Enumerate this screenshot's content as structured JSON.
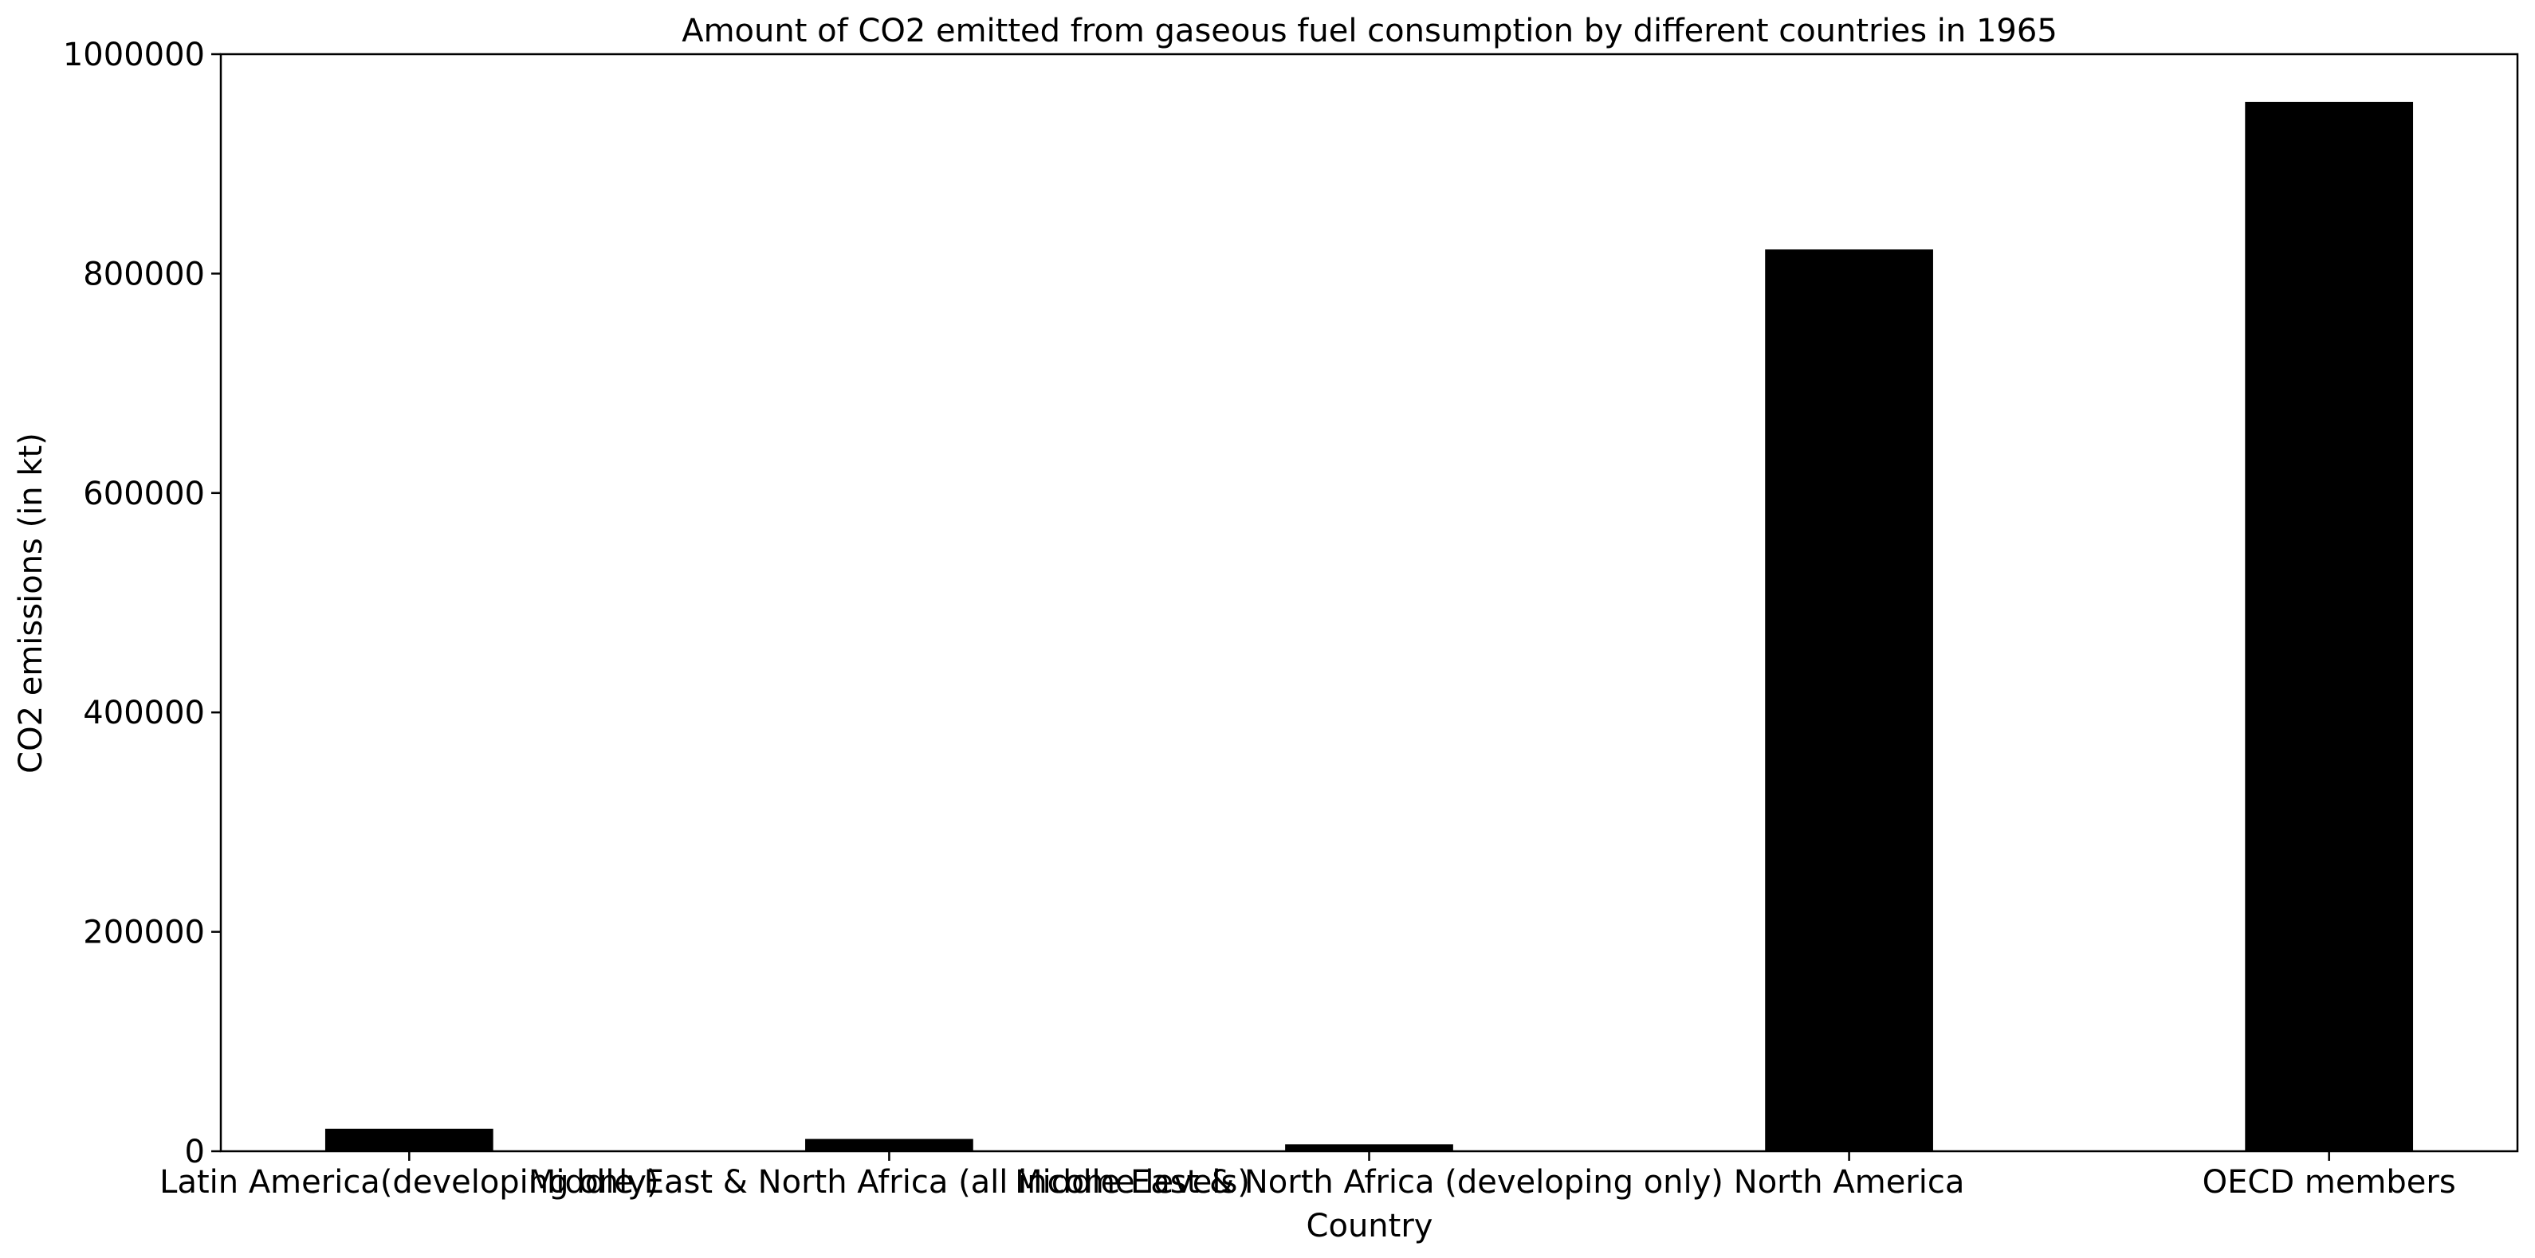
{
  "chart_data": {
    "type": "bar",
    "title": "Amount of CO2 emitted from gaseous fuel consumption by different countries in 1965",
    "xlabel": "Country",
    "ylabel": "CO2 emissions (in kt)",
    "categories": [
      "Latin America(developing only)",
      "Middle East & North Africa (all income levels)",
      "Middle East & North Africa (developing only)",
      "North America",
      "OECD members"
    ],
    "values": [
      20500,
      11200,
      6300,
      822000,
      956500
    ],
    "ylim": [
      0,
      1000000
    ],
    "yticks": [
      0,
      200000,
      400000,
      600000,
      800000,
      1000000
    ],
    "grid": false,
    "legend": "none",
    "bar_color": "#000000"
  }
}
